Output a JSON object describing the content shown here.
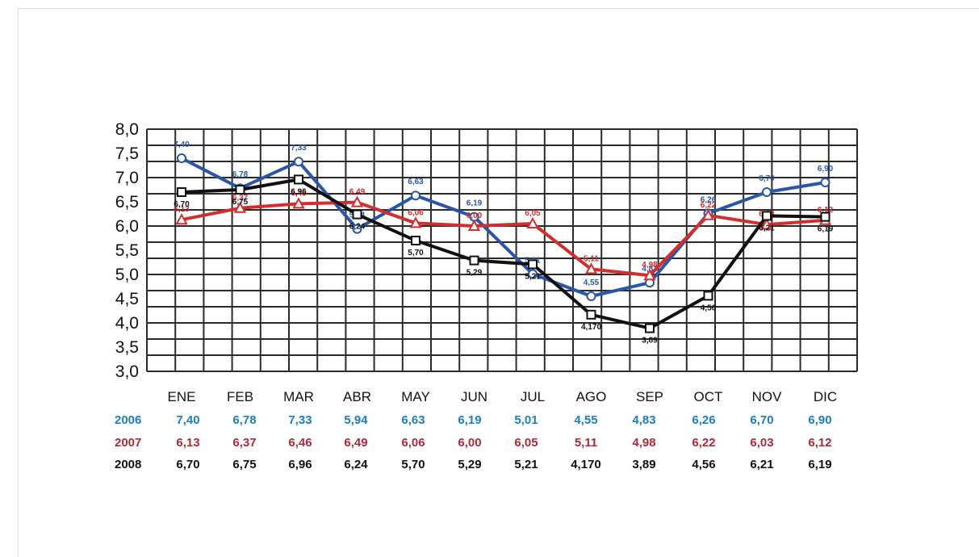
{
  "chart_data": {
    "type": "line",
    "categories": [
      "ENE",
      "FEB",
      "MAR",
      "ABR",
      "MAY",
      "JUN",
      "JUL",
      "AGO",
      "SEP",
      "OCT",
      "NOV",
      "DIC"
    ],
    "ylim": [
      3.0,
      8.0
    ],
    "yticks": [
      "3,0",
      "3,5",
      "4,0",
      "4,5",
      "5,0",
      "5,5",
      "6,0",
      "6,5",
      "7,0",
      "7,5",
      "8,0"
    ],
    "grid": true,
    "series": [
      {
        "name": "2006",
        "color": "#2a56a8",
        "table_color": "#1a7fc0",
        "marker": "circle",
        "values": [
          7.4,
          6.78,
          7.33,
          5.94,
          6.63,
          6.19,
          5.01,
          4.55,
          4.83,
          6.26,
          6.7,
          6.9
        ],
        "labels": [
          "7,40",
          "6,78",
          "7,33",
          "5,94",
          "6,63",
          "6,19",
          "5,01",
          "4,55",
          "4,83",
          "6,26",
          "6,70",
          "6,90"
        ]
      },
      {
        "name": "2007",
        "color": "#d22e2e",
        "table_color": "#b02a34",
        "marker": "triangle",
        "values": [
          6.13,
          6.37,
          6.46,
          6.49,
          6.06,
          6.0,
          6.05,
          5.11,
          4.98,
          6.22,
          6.03,
          6.12
        ],
        "labels": [
          "6,13",
          "6,37",
          "6,46",
          "6,49",
          "6,06",
          "6,00",
          "6,05",
          "5,11",
          "4,98",
          "6,22",
          "6,03",
          "6,12"
        ]
      },
      {
        "name": "2008",
        "color": "#111111",
        "table_color": "#111111",
        "marker": "square",
        "values": [
          6.7,
          6.75,
          6.96,
          6.24,
          5.7,
          5.29,
          5.21,
          4.17,
          3.89,
          4.56,
          6.21,
          6.19
        ],
        "labels": [
          "6,70",
          "6,75",
          "6,96",
          "6,24",
          "5,70",
          "5,29",
          "5,21",
          "4,170",
          "3,89",
          "4,56",
          "6,21",
          "6,19"
        ]
      }
    ]
  }
}
